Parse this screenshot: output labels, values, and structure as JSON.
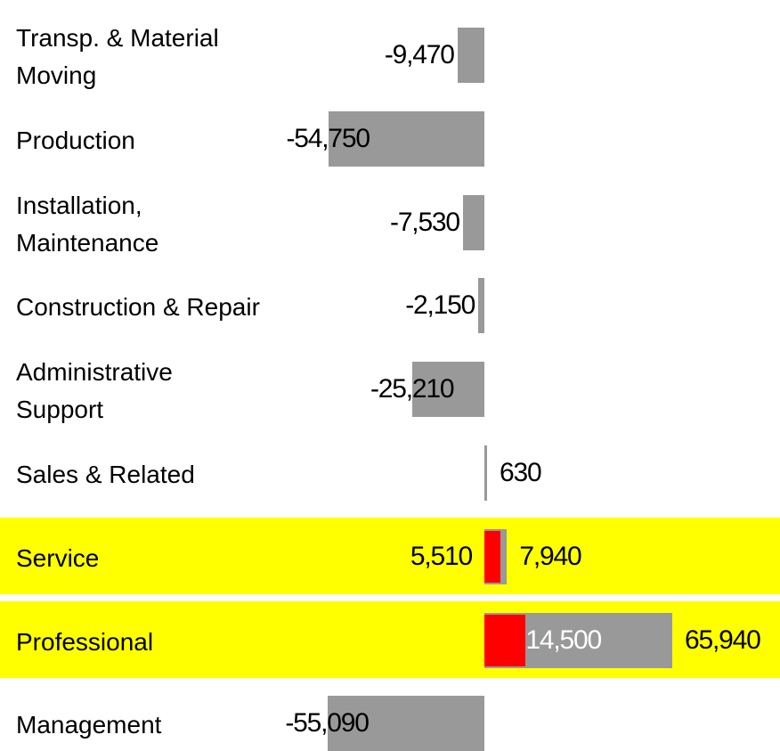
{
  "chart_data": {
    "type": "bar",
    "orientation": "horizontal",
    "categories": [
      "Transp. & Material\nMoving",
      "Production",
      "Installation,\nMaintenance",
      "Construction & Repair",
      "Administrative\nSupport",
      "Sales & Related",
      "Service",
      "Professional",
      "Management"
    ],
    "series": [
      {
        "color": "#999999",
        "values": [
          -9470,
          -54750,
          -7530,
          -2150,
          -25210,
          630,
          7940,
          65940,
          -55090
        ],
        "value_labels": [
          "-9,470",
          "-54,750",
          "-7,530",
          "-2,150",
          "-25,210",
          "630",
          "7,940",
          "65,940",
          "-55,090"
        ]
      },
      {
        "color": "#ff0000",
        "values": [
          null,
          null,
          null,
          null,
          null,
          null,
          5510,
          14500,
          null
        ],
        "value_labels": [
          null,
          null,
          null,
          null,
          null,
          null,
          "5,510",
          "14,500",
          null
        ]
      }
    ],
    "highlight_rows": [
      6,
      7
    ],
    "highlight_color": "#ffff00"
  }
}
